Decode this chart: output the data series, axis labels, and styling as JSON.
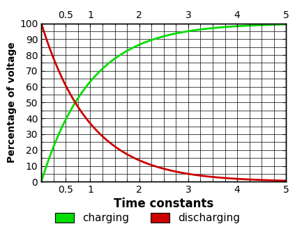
{
  "title": "",
  "xlabel": "Time constants",
  "ylabel": "Percentage of voltage",
  "xlim": [
    0,
    5
  ],
  "ylim": [
    0,
    100
  ],
  "x_major_ticks": [
    0.5,
    1,
    2,
    3,
    4,
    5
  ],
  "y_major_ticks": [
    0,
    10,
    20,
    30,
    40,
    50,
    60,
    70,
    80,
    90,
    100
  ],
  "x_minor_tick_interval": 0.25,
  "y_minor_tick_interval": 5,
  "charging_color": "#00dd00",
  "discharging_color": "#cc0000",
  "line_width": 2.0,
  "legend_charging": "charging",
  "legend_discharging": "discharging",
  "background_color": "#ffffff",
  "grid_color": "#000000",
  "grid_linewidth": 0.5,
  "xlabel_fontsize": 12,
  "ylabel_fontsize": 10,
  "tick_fontsize": 10
}
